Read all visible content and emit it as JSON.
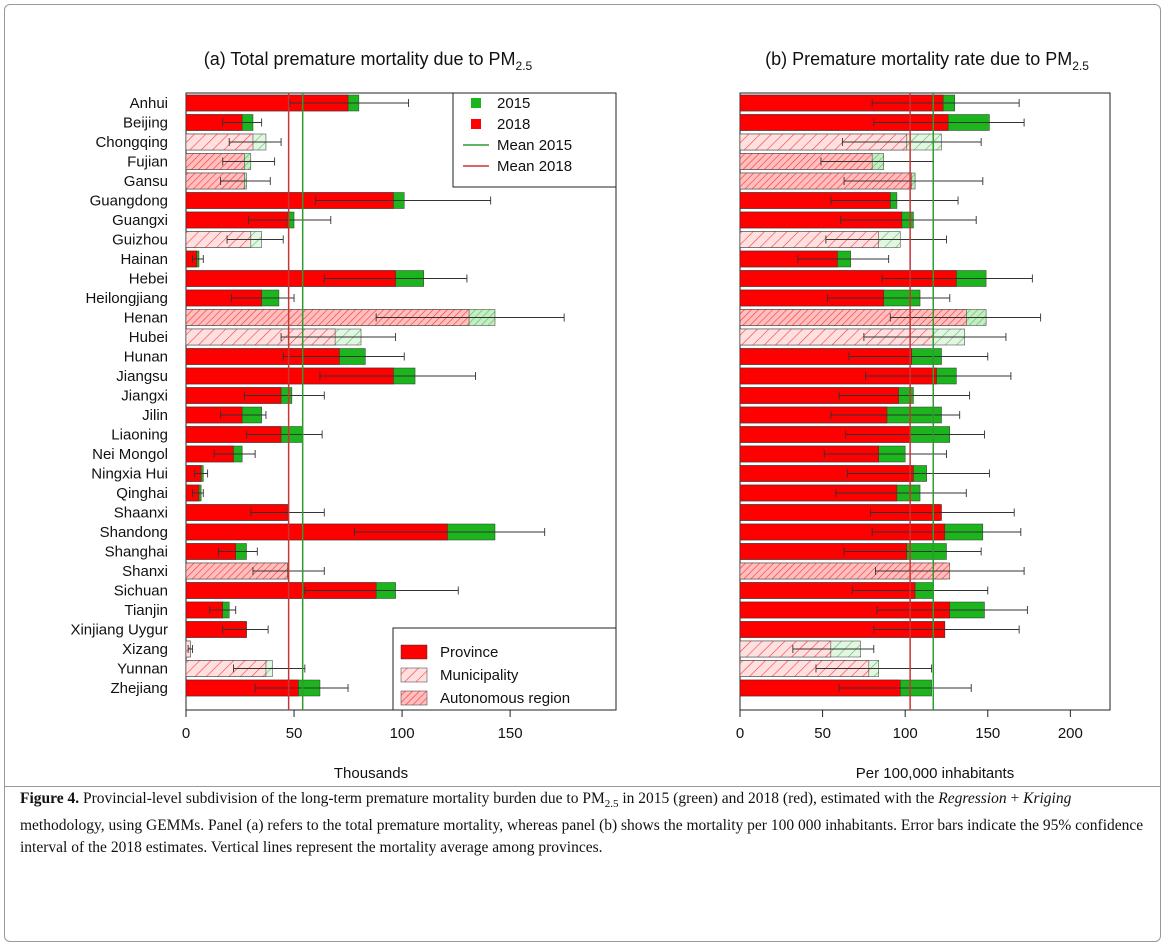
{
  "chart_data": [
    {
      "type": "bar",
      "orientation": "horizontal",
      "title": "(a) Total premature mortality due to PM",
      "title_subscript": "2.5",
      "xlabel": "Thousands",
      "categories": [
        "Anhui",
        "Beijing",
        "Chongqing",
        "Fujian",
        "Gansu",
        "Guangdong",
        "Guangxi",
        "Guizhou",
        "Hainan",
        "Hebei",
        "Heilongjiang",
        "Henan",
        "Hubei",
        "Hunan",
        "Jiangsu",
        "Jiangxi",
        "Jilin",
        "Liaoning",
        "Nei Mongol",
        "Ningxia Hui",
        "Qinghai",
        "Shaanxi",
        "Shandong",
        "Shanghai",
        "Shanxi",
        "Sichuan",
        "Tianjin",
        "Xinjiang Uygur",
        "Xizang",
        "Yunnan",
        "Zhejiang"
      ],
      "subdivision": [
        0,
        0,
        1,
        2,
        2,
        0,
        0,
        1,
        0,
        0,
        0,
        2,
        1,
        0,
        0,
        0,
        0,
        0,
        0,
        0,
        0,
        0,
        0,
        0,
        2,
        0,
        0,
        0,
        1,
        1,
        0
      ],
      "subdivision_legend": [
        "Province",
        "Municipality",
        "Autonomous region"
      ],
      "series": [
        {
          "name": "2015",
          "color": "#1db51d",
          "values": [
            80,
            31,
            37,
            30,
            28,
            101,
            50,
            35,
            6,
            110,
            43,
            143,
            81,
            83,
            106,
            49,
            35,
            54,
            26,
            8,
            7,
            47,
            143,
            28,
            47,
            97,
            20,
            28,
            2,
            40,
            62
          ]
        },
        {
          "name": "2018",
          "color": "#ff0000",
          "values": [
            75,
            26,
            31,
            27,
            27,
            96,
            47,
            30,
            5,
            97,
            35,
            131,
            69,
            71,
            96,
            44,
            26,
            44,
            22,
            7,
            6,
            47,
            121,
            23,
            47,
            88,
            17,
            28,
            2,
            37,
            52
          ],
          "ci_low": [
            48,
            17,
            20,
            17,
            16,
            60,
            29,
            19,
            3,
            64,
            21,
            88,
            44,
            45,
            62,
            27,
            16,
            28,
            13,
            4,
            3,
            30,
            78,
            15,
            31,
            55,
            11,
            17,
            1,
            22,
            32
          ],
          "ci_high": [
            103,
            35,
            44,
            41,
            39,
            141,
            67,
            45,
            8,
            130,
            50,
            175,
            97,
            101,
            134,
            64,
            37,
            63,
            32,
            10,
            8,
            64,
            166,
            33,
            64,
            126,
            23,
            38,
            3,
            55,
            75
          ]
        }
      ],
      "mean_lines": [
        {
          "name": "Mean 2015",
          "color": "#2e9b2e",
          "value": 54
        },
        {
          "name": "Mean 2018",
          "color": "#cc3333",
          "value": 47.5
        }
      ],
      "xlim": [
        0,
        199
      ],
      "xticks": [
        0,
        50,
        100,
        150
      ]
    },
    {
      "type": "bar",
      "orientation": "horizontal",
      "title": "(b) Premature mortality rate due to PM",
      "title_subscript": "2.5",
      "xlabel": "Per 100,000 inhabitants",
      "subdivision": [
        0,
        0,
        1,
        2,
        2,
        0,
        0,
        1,
        0,
        0,
        0,
        2,
        1,
        0,
        0,
        0,
        0,
        0,
        0,
        0,
        0,
        0,
        0,
        0,
        2,
        0,
        0,
        0,
        1,
        1,
        0
      ],
      "series": [
        {
          "color": "#1db51d",
          "values": [
            130,
            151,
            122,
            87,
            106,
            95,
            105,
            97,
            67,
            149,
            109,
            149,
            136,
            122,
            131,
            105,
            122,
            127,
            100,
            113,
            109,
            121,
            147,
            125,
            125,
            117,
            148,
            124,
            73,
            84,
            116
          ]
        },
        {
          "color": "#ff0000",
          "values": [
            123,
            126,
            101,
            80,
            104,
            91,
            98,
            84,
            59,
            131,
            87,
            137,
            117,
            104,
            119,
            96,
            89,
            103,
            84,
            105,
            95,
            122,
            124,
            101,
            127,
            106,
            127,
            124,
            55,
            78,
            97
          ],
          "ci_low": [
            80,
            81,
            62,
            49,
            63,
            55,
            61,
            52,
            35,
            86,
            53,
            91,
            75,
            66,
            76,
            60,
            55,
            64,
            51,
            65,
            58,
            79,
            80,
            63,
            82,
            68,
            83,
            81,
            32,
            46,
            60
          ],
          "ci_high": [
            169,
            172,
            146,
            117,
            147,
            132,
            143,
            125,
            90,
            177,
            127,
            182,
            161,
            150,
            164,
            139,
            133,
            148,
            125,
            151,
            137,
            166,
            170,
            146,
            172,
            150,
            174,
            169,
            81,
            116,
            140
          ]
        }
      ],
      "mean_lines": [
        {
          "color": "#2e9b2e",
          "value": 117
        },
        {
          "color": "#cc3333",
          "value": 103
        }
      ],
      "xlim": [
        0,
        224
      ],
      "xticks": [
        0,
        50,
        100,
        150,
        200
      ]
    }
  ],
  "caption": {
    "label": "Figure 4.",
    "text_1": " Provincial-level subdivision of the long-term premature mortality burden due to PM",
    "sub": "2.5",
    "text_2": " in 2015 (green) and 2018 (red), estimated with the ",
    "italic_1": "Regression",
    "text_3": " + ",
    "italic_2": "Kriging",
    "text_4": " methodology, using GEMMs. Panel (a) refers to the total premature mortality, whereas panel (b) shows the mortality per 100 000 inhabitants. Error bars indicate the 95% confidence interval of the 2018 estimates. Vertical lines represent the mortality average among provinces."
  }
}
